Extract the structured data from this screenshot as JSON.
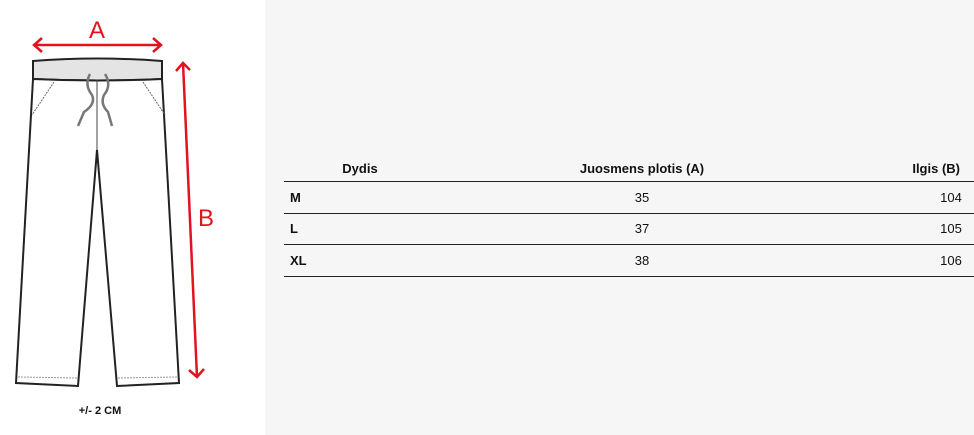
{
  "diagram": {
    "label_a": "A",
    "label_b": "B",
    "tolerance": "+/-  2 CM",
    "arrow_color": "#e2131f"
  },
  "table": {
    "headers": [
      "Dydis",
      "Juosmens plotis (A)",
      "Ilgis (B)"
    ],
    "rows": [
      [
        "M",
        "35",
        "104"
      ],
      [
        "L",
        "37",
        "105"
      ],
      [
        "XL",
        "38",
        "106"
      ]
    ]
  }
}
